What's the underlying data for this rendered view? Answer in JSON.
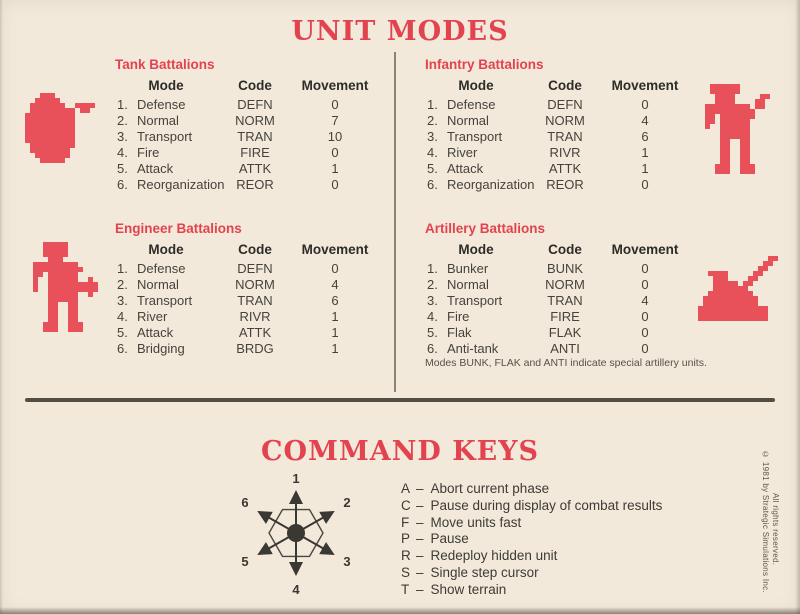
{
  "colors": {
    "red": "#e2434f",
    "icon-red": "#e8515a",
    "bg": "#f2e9db",
    "rule": "#514e45"
  },
  "page": {
    "section1_title": "UNIT MODES",
    "section2_title": "COMMAND KEYS"
  },
  "tables": [
    {
      "title": "Tank Battalions",
      "headers": {
        "mode": "Mode",
        "code": "Code",
        "movement": "Movement"
      },
      "rows": [
        {
          "num": "1.",
          "mode": "Defense",
          "code": "DEFN",
          "movement": "0"
        },
        {
          "num": "2.",
          "mode": "Normal",
          "code": "NORM",
          "movement": "7"
        },
        {
          "num": "3.",
          "mode": "Transport",
          "code": "TRAN",
          "movement": "10"
        },
        {
          "num": "4.",
          "mode": "Fire",
          "code": "FIRE",
          "movement": "0"
        },
        {
          "num": "5.",
          "mode": "Attack",
          "code": "ATTK",
          "movement": "1"
        },
        {
          "num": "6.",
          "mode": "Reorganization",
          "code": "REOR",
          "movement": "0"
        }
      ]
    },
    {
      "title": "Infantry Battalions",
      "headers": {
        "mode": "Mode",
        "code": "Code",
        "movement": "Movement"
      },
      "rows": [
        {
          "num": "1.",
          "mode": "Defense",
          "code": "DEFN",
          "movement": "0"
        },
        {
          "num": "2.",
          "mode": "Normal",
          "code": "NORM",
          "movement": "4"
        },
        {
          "num": "3.",
          "mode": "Transport",
          "code": "TRAN",
          "movement": "6"
        },
        {
          "num": "4.",
          "mode": "River",
          "code": "RIVR",
          "movement": "1"
        },
        {
          "num": "5.",
          "mode": "Attack",
          "code": "ATTK",
          "movement": "1"
        },
        {
          "num": "6.",
          "mode": "Reorganization",
          "code": "REOR",
          "movement": "0"
        }
      ]
    },
    {
      "title": "Engineer Battalions",
      "headers": {
        "mode": "Mode",
        "code": "Code",
        "movement": "Movement"
      },
      "rows": [
        {
          "num": "1.",
          "mode": "Defense",
          "code": "DEFN",
          "movement": "0"
        },
        {
          "num": "2.",
          "mode": "Normal",
          "code": "NORM",
          "movement": "4"
        },
        {
          "num": "3.",
          "mode": "Transport",
          "code": "TRAN",
          "movement": "6"
        },
        {
          "num": "4.",
          "mode": "River",
          "code": "RIVR",
          "movement": "1"
        },
        {
          "num": "5.",
          "mode": "Attack",
          "code": "ATTK",
          "movement": "1"
        },
        {
          "num": "6.",
          "mode": "Bridging",
          "code": "BRDG",
          "movement": "1"
        }
      ]
    },
    {
      "title": "Artillery Battalions",
      "headers": {
        "mode": "Mode",
        "code": "Code",
        "movement": "Movement"
      },
      "rows": [
        {
          "num": "1.",
          "mode": "Bunker",
          "code": "BUNK",
          "movement": "0"
        },
        {
          "num": "2.",
          "mode": "Normal",
          "code": "NORM",
          "movement": "0"
        },
        {
          "num": "3.",
          "mode": "Transport",
          "code": "TRAN",
          "movement": "4"
        },
        {
          "num": "4.",
          "mode": "Fire",
          "code": "FIRE",
          "movement": "0"
        },
        {
          "num": "5.",
          "mode": "Flak",
          "code": "FLAK",
          "movement": "0"
        },
        {
          "num": "6.",
          "mode": "Anti-tank",
          "code": "ANTI",
          "movement": "0"
        }
      ]
    }
  ],
  "artillery_note": "Modes BUNK, FLAK and ANTI indicate special artillery units.",
  "command_keys": {
    "separator": "–",
    "items": [
      {
        "key": "A",
        "desc": "Abort current phase"
      },
      {
        "key": "C",
        "desc": "Pause during display of combat results"
      },
      {
        "key": "F",
        "desc": "Move units fast"
      },
      {
        "key": "P",
        "desc": "Pause"
      },
      {
        "key": "R",
        "desc": "Redeploy hidden unit"
      },
      {
        "key": "S",
        "desc": "Single step cursor"
      },
      {
        "key": "T",
        "desc": "Show terrain"
      }
    ]
  },
  "compass": {
    "directions": [
      "1",
      "2",
      "3",
      "4",
      "5",
      "6"
    ]
  },
  "copyright": {
    "line1": "© 1981 by Strategic Simulations Inc.",
    "line2": "All rights reserved."
  },
  "icons": {
    "tank": {
      "label": "tank-icon",
      "pixels": [
        "...###........",
        "..#####.......",
        ".#######..####",
        ".#########.##.",
        "##########....",
        "##########....",
        "##########....",
        "##########....",
        "##########....",
        "##########....",
        ".#########....",
        ".########.....",
        "..#######.....",
        "...#####......"
      ]
    },
    "infantry": {
      "label": "infantry-soldier-icon",
      "pixels": [
        "..######......",
        "..######......",
        "...####.....##",
        "...####....##.",
        ".#########.##.",
        ".##########...",
        ".##.#######...",
        ".##.######....",
        ".#..######....",
        "....######....",
        "....######....",
        "....##..##....",
        "....##..##....",
        "....##..##....",
        "....##..##....",
        "....##..##....",
        "...###..###...",
        "...###..###..."
      ]
    },
    "engineer": {
      "label": "engineer-soldier-icon",
      "pixels": [
        "...#####......",
        "...#####......",
        "...#####......",
        "....###.......",
        ".#########....",
        ".##########...",
        ".##.######....",
        ".#..######..#.",
        ".#..##########",
        ".#..##########",
        "....######..#.",
        "....######....",
        "....##..##....",
        "....##..##....",
        "....##..##....",
        "....##..##....",
        "...###..###...",
        "...###..###..."
      ]
    },
    "artillery": {
      "label": "artillery-gun-icon",
      "pixels": [
        "..............##",
        ".............##.",
        "............##..",
        "..####.....##...",
        "...###....##....",
        "...#####.##.....",
        "...#######......",
        "..#########.....",
        ".###########....",
        ".###########....",
        "##############..",
        "##############..",
        "##############.."
      ]
    }
  }
}
